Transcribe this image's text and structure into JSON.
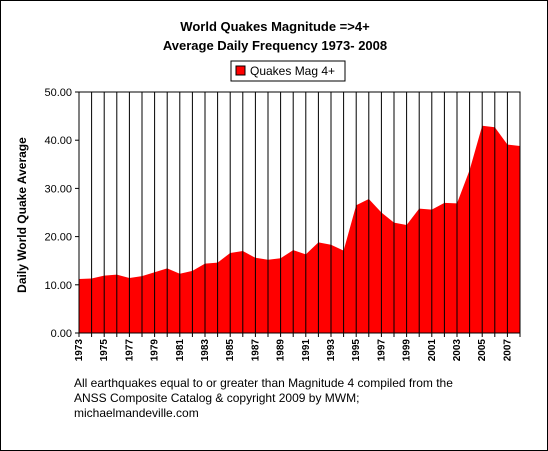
{
  "chart_data": {
    "type": "area",
    "title_lines": [
      "World Quakes Magnitude =>4+",
      "Average Daily Frequency 1973- 2008"
    ],
    "ylabel": "Daily World Quake Average",
    "xlabel": "",
    "ylim": [
      0,
      50
    ],
    "yticks": [
      "0.00",
      "10.00",
      "20.00",
      "30.00",
      "40.00",
      "50.00"
    ],
    "x": [
      1973,
      1974,
      1975,
      1976,
      1977,
      1978,
      1979,
      1980,
      1981,
      1982,
      1983,
      1984,
      1985,
      1986,
      1987,
      1988,
      1989,
      1990,
      1991,
      1992,
      1993,
      1994,
      1995,
      1996,
      1997,
      1998,
      1999,
      2000,
      2001,
      2002,
      2003,
      2004,
      2005,
      2006,
      2007,
      2008
    ],
    "xtick_labels": [
      "1973",
      "1975",
      "1977",
      "1979",
      "1981",
      "1983",
      "1985",
      "1987",
      "1989",
      "1991",
      "1993",
      "1995",
      "1997",
      "1999",
      "2001",
      "2003",
      "2005",
      "2007"
    ],
    "series": [
      {
        "name": "Quakes Mag 4+",
        "color": "#ff0000",
        "values": [
          11.2,
          11.3,
          11.9,
          12.1,
          11.4,
          11.8,
          12.6,
          13.4,
          12.3,
          12.9,
          14.4,
          14.6,
          16.6,
          17.0,
          15.6,
          15.2,
          15.5,
          17.2,
          16.3,
          18.8,
          18.3,
          17.1,
          26.5,
          27.8,
          25.0,
          22.9,
          22.4,
          25.8,
          25.6,
          27.0,
          26.9,
          33.8,
          43.0,
          42.7,
          39.1,
          38.8
        ]
      }
    ],
    "grid": "vertical",
    "legend_position": "top-center",
    "plot_background": "#ffffff"
  },
  "footnote": {
    "line1": "All earthquakes equal to or greater than Magnitude 4 compiled from the",
    "line2": "ANSS Composite Catalog & copyright 2009 by MWM;",
    "line3": "michaelmandeville.com"
  }
}
